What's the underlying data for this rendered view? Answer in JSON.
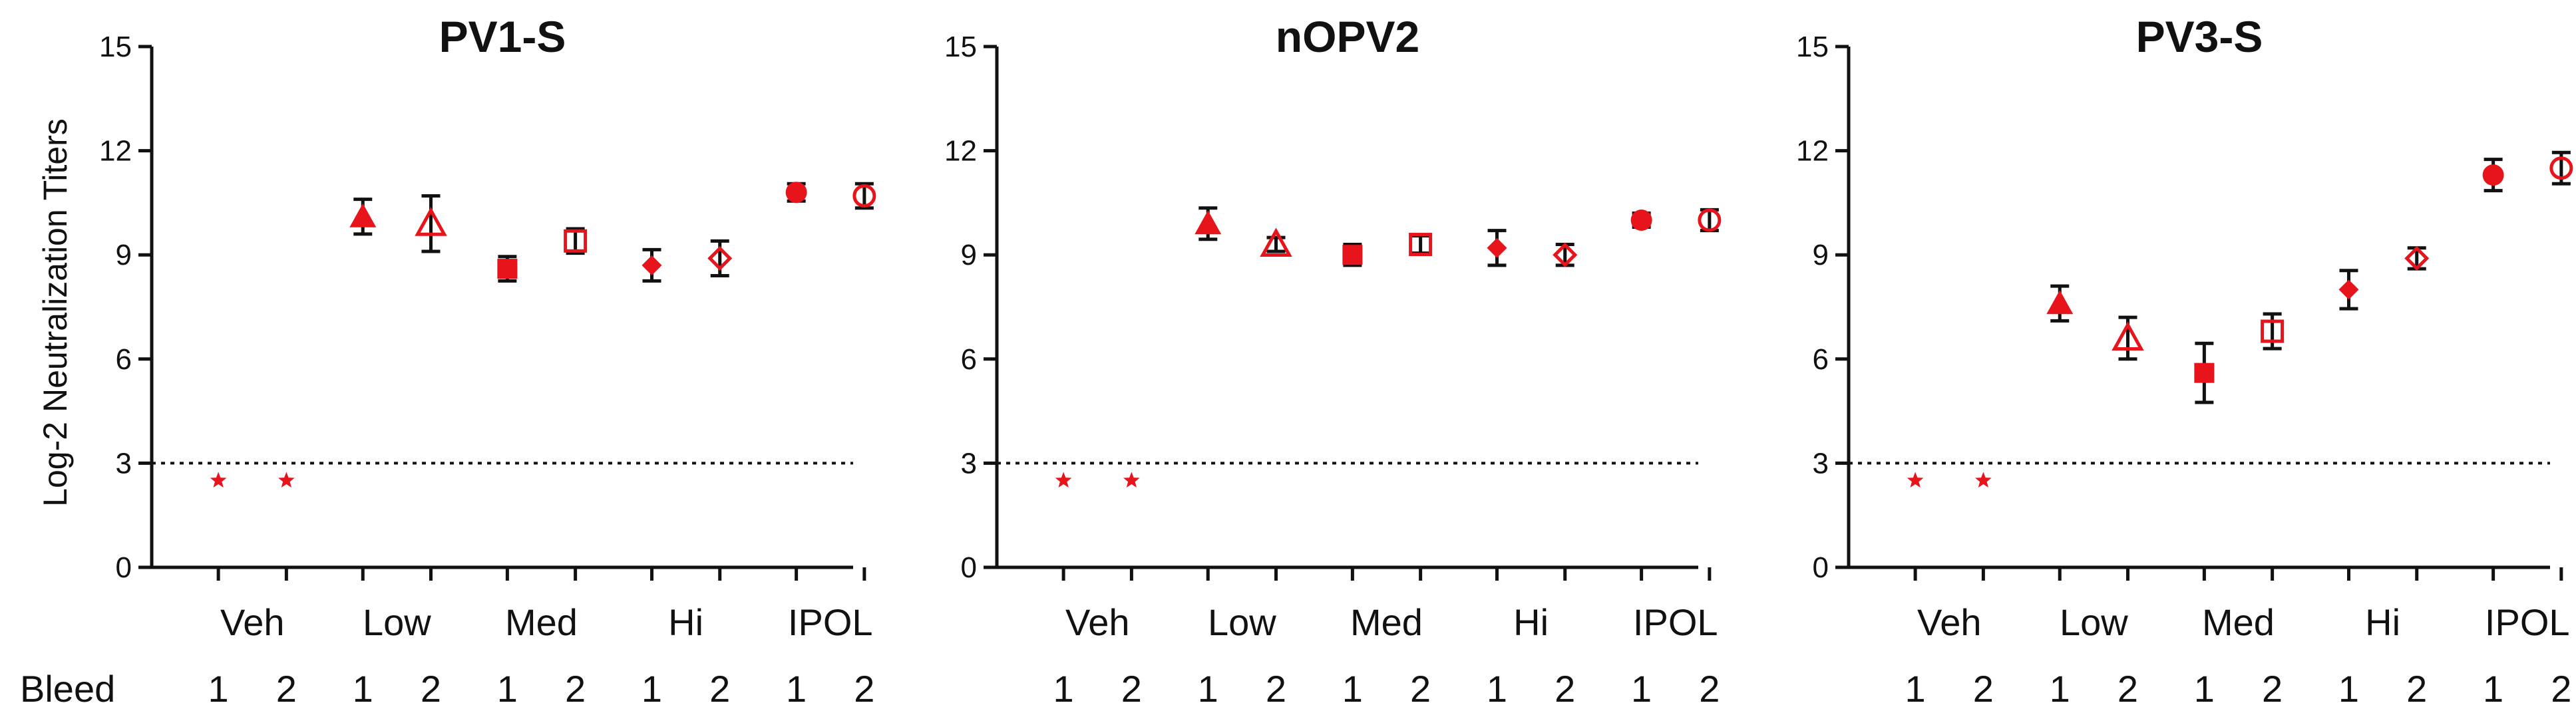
{
  "figure": {
    "ylabel": "Log-2 Neutralization Titers",
    "row_label": "Bleed",
    "reference_line": 3,
    "colors": {
      "marker": "#e8141b",
      "errorbar": "#111111",
      "axis": "#111111",
      "reference_line": "#111111"
    }
  },
  "chart_data": [
    {
      "type": "scatter",
      "title": "PV1-S",
      "ylabel": "Log-2 Neutralization Titers",
      "ylim": [
        0,
        15
      ],
      "yticks": [
        0,
        3,
        6,
        9,
        12,
        15
      ],
      "reference_line": 3,
      "groups": [
        "Veh",
        "Low",
        "Med",
        "Hi",
        "IPOL"
      ],
      "bleeds": [
        "1",
        "2",
        "1",
        "2",
        "1",
        "2",
        "1",
        "2",
        "1",
        "2"
      ],
      "points": [
        {
          "group": "Veh",
          "bleed": 1,
          "marker": "star",
          "y": 2.5
        },
        {
          "group": "Veh",
          "bleed": 2,
          "marker": "star",
          "y": 2.5
        },
        {
          "group": "Low",
          "bleed": 1,
          "marker": "triangle-filled",
          "y": 10.1,
          "err": 0.5
        },
        {
          "group": "Low",
          "bleed": 2,
          "marker": "triangle-open",
          "y": 9.9,
          "err": 0.8
        },
        {
          "group": "Med",
          "bleed": 1,
          "marker": "square-filled",
          "y": 8.6,
          "err": 0.35
        },
        {
          "group": "Med",
          "bleed": 2,
          "marker": "square-open",
          "y": 9.4,
          "err": 0.35
        },
        {
          "group": "Hi",
          "bleed": 1,
          "marker": "diamond-filled",
          "y": 8.7,
          "err": 0.45
        },
        {
          "group": "Hi",
          "bleed": 2,
          "marker": "diamond-open",
          "y": 8.9,
          "err": 0.5
        },
        {
          "group": "IPOL",
          "bleed": 1,
          "marker": "circle-filled",
          "y": 10.8,
          "err": 0.25
        },
        {
          "group": "IPOL",
          "bleed": 2,
          "marker": "circle-open",
          "y": 10.7,
          "err": 0.35
        }
      ]
    },
    {
      "type": "scatter",
      "title": "nOPV2",
      "ylabel": "",
      "ylim": [
        0,
        15
      ],
      "yticks": [
        0,
        3,
        6,
        9,
        12,
        15
      ],
      "reference_line": 3,
      "groups": [
        "Veh",
        "Low",
        "Med",
        "Hi",
        "IPOL"
      ],
      "bleeds": [
        "1",
        "2",
        "1",
        "2",
        "1",
        "2",
        "1",
        "2",
        "1",
        "2"
      ],
      "points": [
        {
          "group": "Veh",
          "bleed": 1,
          "marker": "star",
          "y": 2.5
        },
        {
          "group": "Veh",
          "bleed": 2,
          "marker": "star",
          "y": 2.5
        },
        {
          "group": "Low",
          "bleed": 1,
          "marker": "triangle-filled",
          "y": 9.9,
          "err": 0.45
        },
        {
          "group": "Low",
          "bleed": 2,
          "marker": "triangle-open",
          "y": 9.3,
          "err": 0.2
        },
        {
          "group": "Med",
          "bleed": 1,
          "marker": "square-filled",
          "y": 9.0,
          "err": 0.3
        },
        {
          "group": "Med",
          "bleed": 2,
          "marker": "square-open",
          "y": 9.3,
          "err": 0.25
        },
        {
          "group": "Hi",
          "bleed": 1,
          "marker": "diamond-filled",
          "y": 9.2,
          "err": 0.5
        },
        {
          "group": "Hi",
          "bleed": 2,
          "marker": "diamond-open",
          "y": 9.0,
          "err": 0.3
        },
        {
          "group": "IPOL",
          "bleed": 1,
          "marker": "circle-filled",
          "y": 10.0,
          "err": 0.2
        },
        {
          "group": "IPOL",
          "bleed": 2,
          "marker": "circle-open",
          "y": 10.0,
          "err": 0.3
        }
      ]
    },
    {
      "type": "scatter",
      "title": "PV3-S",
      "ylabel": "",
      "ylim": [
        0,
        15
      ],
      "yticks": [
        0,
        3,
        6,
        9,
        12,
        15
      ],
      "reference_line": 3,
      "groups": [
        "Veh",
        "Low",
        "Med",
        "Hi",
        "IPOL"
      ],
      "bleeds": [
        "1",
        "2",
        "1",
        "2",
        "1",
        "2",
        "1",
        "2",
        "1",
        "2"
      ],
      "points": [
        {
          "group": "Veh",
          "bleed": 1,
          "marker": "star",
          "y": 2.5
        },
        {
          "group": "Veh",
          "bleed": 2,
          "marker": "star",
          "y": 2.5
        },
        {
          "group": "Low",
          "bleed": 1,
          "marker": "triangle-filled",
          "y": 7.6,
          "err": 0.5
        },
        {
          "group": "Low",
          "bleed": 2,
          "marker": "triangle-open",
          "y": 6.6,
          "err": 0.6
        },
        {
          "group": "Med",
          "bleed": 1,
          "marker": "square-filled",
          "y": 5.6,
          "err": 0.85
        },
        {
          "group": "Med",
          "bleed": 2,
          "marker": "square-open",
          "y": 6.8,
          "err": 0.5
        },
        {
          "group": "Hi",
          "bleed": 1,
          "marker": "diamond-filled",
          "y": 8.0,
          "err": 0.55
        },
        {
          "group": "Hi",
          "bleed": 2,
          "marker": "diamond-open",
          "y": 8.9,
          "err": 0.3
        },
        {
          "group": "IPOL",
          "bleed": 1,
          "marker": "circle-filled",
          "y": 11.3,
          "err": 0.45
        },
        {
          "group": "IPOL",
          "bleed": 2,
          "marker": "circle-open",
          "y": 11.5,
          "err": 0.45
        }
      ]
    }
  ]
}
